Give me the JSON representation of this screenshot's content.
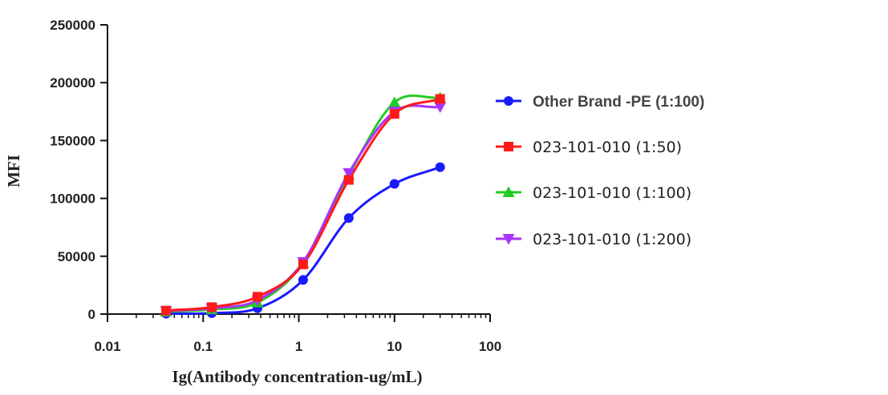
{
  "chart_data": {
    "type": "scatter",
    "title": "",
    "xlabel": "Ig(Antibody concentration-ug/mL)",
    "ylabel": "MFI",
    "x_scale": "log",
    "xlim": [
      0.01,
      100
    ],
    "ylim": [
      0,
      250000
    ],
    "x_ticks": [
      "0.01",
      "0.1",
      "1",
      "10",
      "100"
    ],
    "y_ticks": [
      "0",
      "50000",
      "100000",
      "150000",
      "200000",
      "250000"
    ],
    "legend_position": "right",
    "grid": false,
    "fit": "sigmoid curve through each series",
    "series": [
      {
        "name": "Other Brand -PE (1:100)",
        "color": "#1a1aff",
        "marker": "circle",
        "x": [
          0.041,
          0.123,
          0.37,
          1.11,
          3.33,
          10,
          30
        ],
        "y": [
          300,
          800,
          5000,
          29500,
          83000,
          112500,
          127000
        ]
      },
      {
        "name": "023-101-010    (1:50)",
        "color": "#ff1a1a",
        "marker": "square",
        "x": [
          0.041,
          0.123,
          0.37,
          1.11,
          3.33,
          10,
          30
        ],
        "y": [
          3000,
          6000,
          15000,
          43000,
          116000,
          173000,
          186000
        ]
      },
      {
        "name": "023-101-010    (1:100)",
        "color": "#22cc22",
        "marker": "triangle-up",
        "x": [
          0.041,
          0.123,
          0.37,
          1.11,
          3.33,
          10,
          30
        ],
        "y": [
          2000,
          4000,
          10000,
          44000,
          120000,
          183000,
          187000
        ]
      },
      {
        "name": "023-101-010    (1:200)",
        "color": "#aa33ff",
        "marker": "triangle-down",
        "x": [
          0.041,
          0.123,
          0.37,
          1.11,
          3.33,
          10,
          30
        ],
        "y": [
          2500,
          5000,
          12000,
          45000,
          122000,
          175000,
          179000
        ]
      }
    ]
  }
}
